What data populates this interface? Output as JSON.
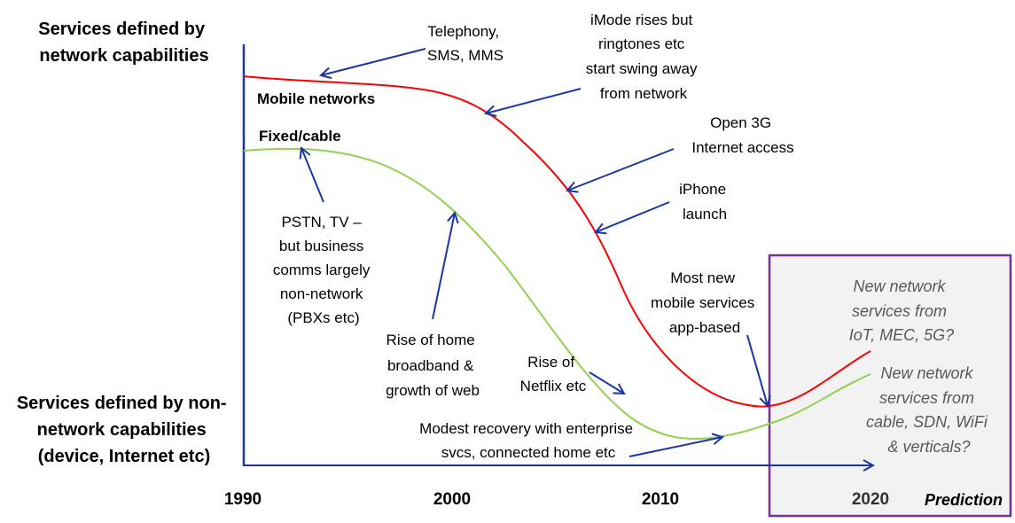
{
  "axis": {
    "top_label": [
      "Services defined by",
      "network capabilities"
    ],
    "bottom_label": [
      "Services defined by non-",
      "network capabilities",
      "(device, Internet etc)"
    ],
    "years": [
      "1990",
      "2000",
      "2010",
      "2020"
    ]
  },
  "series": {
    "mobile": {
      "label": "Mobile networks",
      "color": "#ff0000"
    },
    "fixed": {
      "label": "Fixed/cable",
      "color": "#92d050"
    }
  },
  "annotations": {
    "telephony": [
      "Telephony,",
      "SMS, MMS"
    ],
    "imode": [
      "iMode rises but",
      "ringtones etc",
      "start swing away",
      "from network"
    ],
    "open3g": [
      "Open 3G",
      "Internet  access"
    ],
    "iphone": [
      "iPhone",
      "launch"
    ],
    "pstn": [
      "PSTN, TV –",
      "but business",
      "comms largely",
      "non-network",
      "(PBXs etc)"
    ],
    "home_broadband": [
      "Rise of home",
      "broadband  &",
      "growth of web"
    ],
    "netflix": [
      "Rise of",
      "Netflix etc"
    ],
    "mobile_apps": [
      "Most new",
      "mobile services",
      "app-based"
    ],
    "recovery": [
      "Modest recovery  with enterprise",
      "svcs, connected home etc"
    ]
  },
  "prediction": {
    "label": "Prediction",
    "mobile_note": [
      "New network",
      "services  from",
      "IoT, MEC, 5G?"
    ],
    "fixed_note": [
      "New network",
      "services  from",
      "cable,  SDN, WiFi",
      "& verticals?"
    ]
  }
}
